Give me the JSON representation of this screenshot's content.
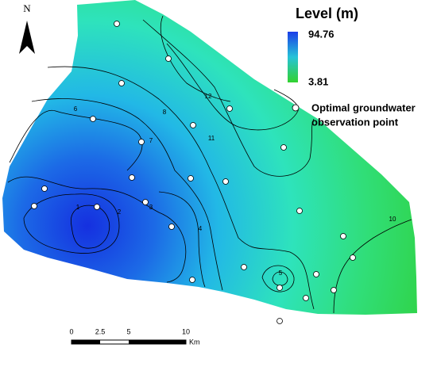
{
  "north_arrow": {
    "label": "N"
  },
  "legend": {
    "title": "Level (m)",
    "max": "94.76",
    "min": "3.81",
    "point_label": [
      "Optimal groundwater",
      "observation point"
    ]
  },
  "scale_bar": {
    "labels": [
      "0",
      "2.5",
      "5",
      "10"
    ],
    "unit": "Km"
  },
  "contour_labels": [
    "1",
    "2",
    "3",
    "4",
    "5",
    "6",
    "7",
    "8",
    "10",
    "11",
    "12"
  ]
}
